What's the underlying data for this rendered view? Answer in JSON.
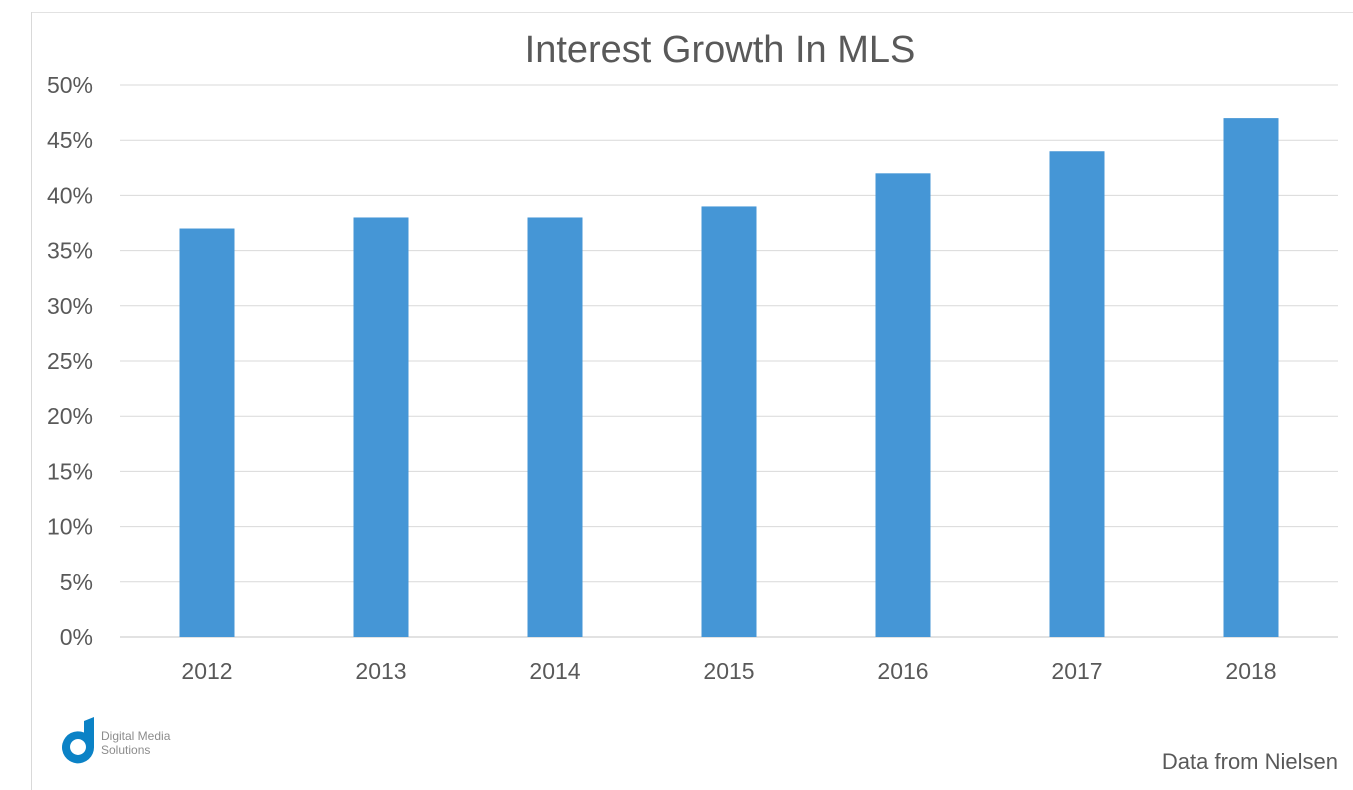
{
  "chart_data": {
    "type": "bar",
    "title": "Interest Growth In MLS",
    "categories": [
      "2012",
      "2013",
      "2014",
      "2015",
      "2016",
      "2017",
      "2018"
    ],
    "values": [
      37,
      38,
      38,
      39,
      42,
      44,
      47
    ],
    "ylim": [
      0,
      50
    ],
    "yticks": [
      "0%",
      "5%",
      "10%",
      "15%",
      "20%",
      "25%",
      "30%",
      "35%",
      "40%",
      "45%",
      "50%"
    ],
    "y_tick_values": [
      0,
      5,
      10,
      15,
      20,
      25,
      30,
      35,
      40,
      45,
      50
    ],
    "grid": true,
    "legend": "none",
    "bar_color": "#4596d6",
    "grid_color": "#d9d9d9",
    "text_color": "#595959"
  },
  "logo": {
    "line1": "Digital Media",
    "line2": "Solutions",
    "color": "#0b82c6"
  },
  "source_note": "Data from Nielsen"
}
